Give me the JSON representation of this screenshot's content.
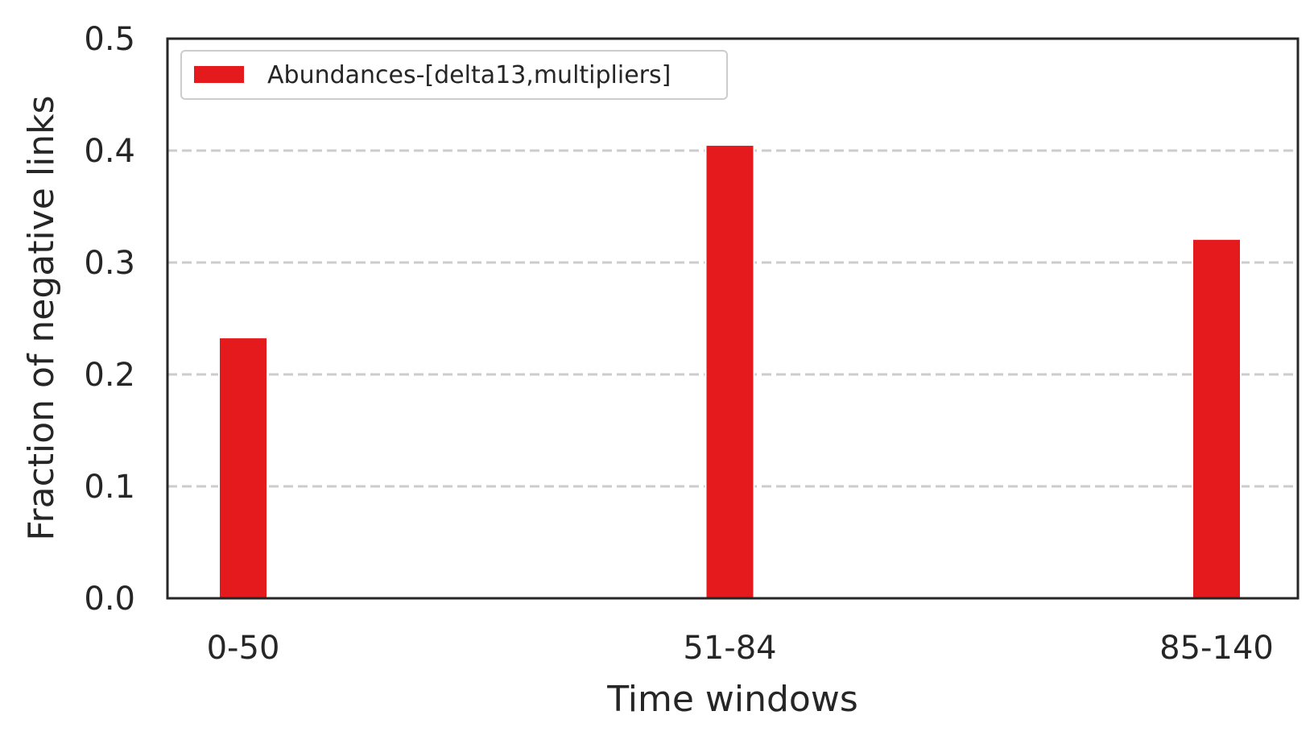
{
  "chart_data": {
    "type": "bar",
    "categories": [
      "0-50",
      "51-84",
      "85-140"
    ],
    "series": [
      {
        "name": "Abundances-[delta13,multipliers]",
        "values": [
          0.233,
          0.405,
          0.321
        ],
        "color": "#e41a1c"
      }
    ],
    "title": "",
    "xlabel": "Time windows",
    "ylabel": "Fraction of negative links",
    "ylim": [
      0,
      0.5
    ],
    "yticks": [
      "0.0",
      "0.1",
      "0.2",
      "0.3",
      "0.4",
      "0.5"
    ],
    "grid": "horizontal dashed",
    "legend_position": "top-left"
  }
}
